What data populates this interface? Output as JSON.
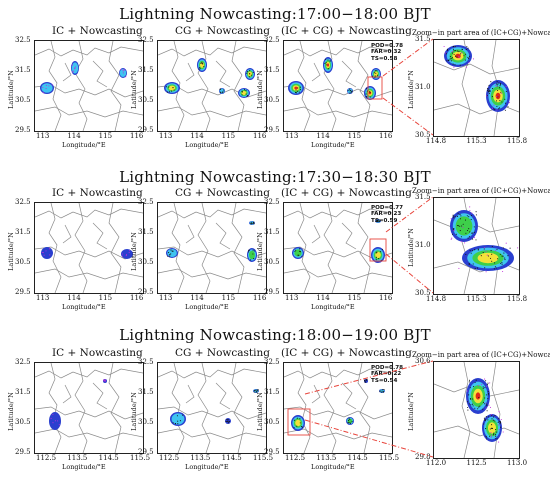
{
  "rows": [
    {
      "title": "Lightning Nowcasting:17:00−18:00 BJT",
      "panels": [
        "IC + Nowcasting",
        "CG + Nowcasting",
        "(IC + CG) + Nowcasting"
      ],
      "zoom_title": "Zoom−in part area of (IC+CG)+Nowcasting",
      "yticks": [
        "32.5",
        "31.5",
        "30.5",
        "29.5"
      ],
      "xticks": [
        "113",
        "114",
        "115",
        "116"
      ],
      "zoom_yticks": [
        "31.5",
        "31.0",
        "30.5"
      ],
      "zoom_xticks": [
        "114.8",
        "115.3",
        "115.8"
      ],
      "metrics": [
        "POD=0.78",
        "FAR=0.32",
        "TS=0.58"
      ]
    },
    {
      "title": "Lightning Nowcasting:17:30−18:30 BJT",
      "panels": [
        "IC + Nowcasting",
        "CG + Nowcasting",
        "(IC + CG) + Nowcasting"
      ],
      "zoom_title": "Zoom−in part area of (IC+CG)+Nowcasting",
      "yticks": [
        "32.5",
        "31.5",
        "30.5",
        "29.5"
      ],
      "xticks": [
        "113",
        "114",
        "115",
        "116"
      ],
      "zoom_yticks": [
        "31.5",
        "31.0",
        "30.5"
      ],
      "zoom_xticks": [
        "114.8",
        "115.3",
        "115.8"
      ],
      "metrics": [
        "POD=0.77",
        "FAR=0.23",
        "TS=0.59"
      ]
    },
    {
      "title": "Lightning Nowcasting:18:00−19:00 BJT",
      "panels": [
        "IC + Nowcasting",
        "CG + Nowcasting",
        "(IC + CG) + Nowcasting"
      ],
      "zoom_title": "Zoom−in part area of (IC+CG)+Nowcasting",
      "yticks": [
        "32.5",
        "31.5",
        "30.5",
        "29.5"
      ],
      "xticks": [
        "112.5",
        "113.5",
        "114.5",
        "115.5"
      ],
      "zoom_yticks": [
        "30.6",
        "29.8"
      ],
      "zoom_xticks": [
        "112.0",
        "112.5",
        "113.0"
      ],
      "metrics": [
        "POD=0.78",
        "FAR=0.22",
        "TS=0.54"
      ]
    }
  ],
  "axis": {
    "ylabel": "Latitude/°N",
    "xlabel": "Longitude/°E"
  },
  "colors": {
    "border_lines": "#8a8a8a",
    "connector": "#e8453c",
    "level_blue": "#2a3fcf",
    "level_cyan": "#3fc4f0",
    "level_green": "#3ecf4a",
    "level_yellow": "#f3e23a",
    "level_red": "#e0281a",
    "ic_points": "#c02bd9",
    "cg_points": "#111111"
  }
}
